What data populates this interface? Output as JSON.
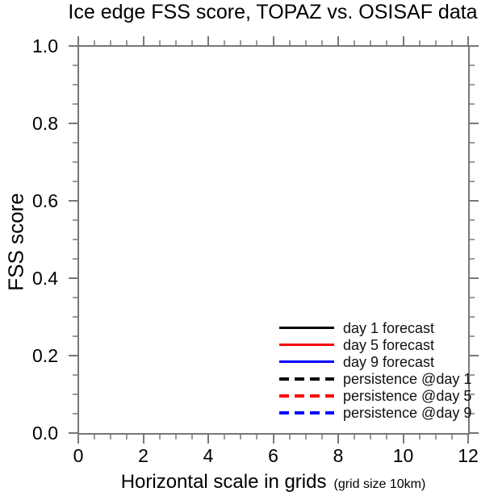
{
  "chart_data": {
    "type": "line",
    "title": "Ice edge FSS score, TOPAZ vs. OSISAF data",
    "xlabel": "Horizontal scale in grids",
    "xlabel_note": "(grid size 10km)",
    "ylabel": "FSS score",
    "xlim": [
      0,
      12
    ],
    "ylim": [
      0.0,
      1.0
    ],
    "xticks": [
      0,
      2,
      4,
      6,
      8,
      10,
      12
    ],
    "xtick_labels": [
      "0",
      "2",
      "4",
      "6",
      "8",
      "10",
      "12"
    ],
    "yticks": [
      0.0,
      0.2,
      0.4,
      0.6,
      0.8,
      1.0
    ],
    "ytick_labels": [
      "0.0",
      "0.2",
      "0.4",
      "0.6",
      "0.8",
      "1.0"
    ],
    "x_minor_step": 0.5,
    "y_minor_step": 0.05,
    "grid": false,
    "legend_position": "inside lower right",
    "series": [
      {
        "name": "day 1 forecast",
        "color": "#000000",
        "dash": "solid",
        "values": []
      },
      {
        "name": "day 5 forecast",
        "color": "#ff0000",
        "dash": "solid",
        "values": []
      },
      {
        "name": "day 9 forecast",
        "color": "#0000ff",
        "dash": "solid",
        "values": []
      },
      {
        "name": "persistence @day 1",
        "color": "#000000",
        "dash": "dashed",
        "values": []
      },
      {
        "name": "persistence @day 5",
        "color": "#ff0000",
        "dash": "dashed",
        "values": []
      },
      {
        "name": "persistence @day 9",
        "color": "#0000ff",
        "dash": "dashed",
        "values": []
      }
    ],
    "note": "empty plot area - no curves drawn, axes and legend only"
  }
}
